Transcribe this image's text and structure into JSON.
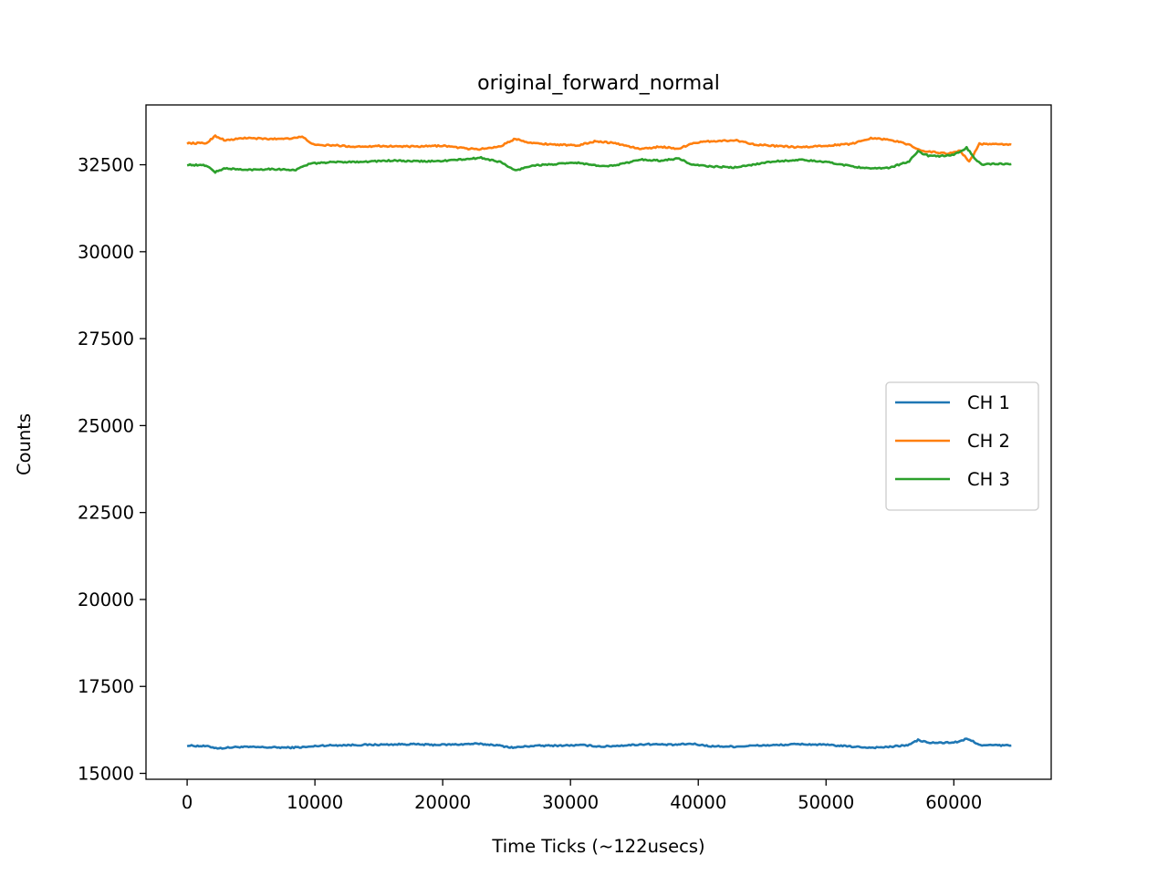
{
  "chart_data": {
    "type": "line",
    "title": "original_forward_normal",
    "xlabel": "Time Ticks (~122usecs)",
    "ylabel": "Counts",
    "xlim": [
      -3220,
      67620
    ],
    "ylim": [
      14830,
      34220
    ],
    "xticks": [
      0,
      10000,
      20000,
      30000,
      40000,
      50000,
      60000
    ],
    "yticks": [
      15000,
      17500,
      20000,
      22500,
      25000,
      27500,
      30000,
      32500
    ],
    "grid": false,
    "legend_position": "center-right",
    "series": [
      {
        "name": "CH 1",
        "color": "#1f77b4",
        "x": [
          0,
          1500,
          2500,
          4000,
          6000,
          8000,
          9500,
          10500,
          12000,
          14000,
          16000,
          17500,
          19000,
          21000,
          22500,
          24000,
          25500,
          27000,
          29000,
          31000,
          32500,
          34000,
          36000,
          38000,
          39500,
          41000,
          43000,
          44500,
          46000,
          48000,
          50000,
          52000,
          53500,
          55000,
          56500,
          57200,
          58000,
          59000,
          60000,
          60500,
          61000,
          61500,
          62200,
          63000,
          64500
        ],
        "y": [
          15800,
          15780,
          15720,
          15760,
          15750,
          15740,
          15760,
          15800,
          15810,
          15820,
          15830,
          15840,
          15820,
          15830,
          15850,
          15820,
          15740,
          15790,
          15800,
          15810,
          15770,
          15800,
          15840,
          15820,
          15850,
          15780,
          15770,
          15800,
          15810,
          15840,
          15820,
          15770,
          15740,
          15760,
          15820,
          15960,
          15880,
          15880,
          15890,
          15920,
          15990,
          15920,
          15800,
          15810,
          15800
        ]
      },
      {
        "name": "CH 2",
        "color": "#ff7f0e",
        "x": [
          0,
          1500,
          2200,
          3000,
          4500,
          6500,
          8000,
          9000,
          10000,
          11500,
          13000,
          15000,
          16500,
          18000,
          20000,
          22000,
          23000,
          24500,
          25700,
          27000,
          29000,
          30500,
          32000,
          33500,
          35500,
          37000,
          38500,
          39500,
          41000,
          43000,
          44500,
          46000,
          48000,
          50000,
          52000,
          53500,
          55000,
          56500,
          57500,
          58500,
          59500,
          60500,
          61200,
          62000,
          62800,
          64500
        ],
        "y": [
          33120,
          33120,
          33330,
          33200,
          33270,
          33240,
          33260,
          33300,
          33060,
          33060,
          33020,
          33040,
          33030,
          33020,
          33050,
          32960,
          32950,
          33030,
          33250,
          33120,
          33080,
          33050,
          33180,
          33120,
          32950,
          33020,
          32960,
          33120,
          33180,
          33200,
          33080,
          33040,
          33000,
          33050,
          33100,
          33270,
          33220,
          33080,
          32900,
          32860,
          32820,
          32900,
          32580,
          33100,
          33090,
          33080
        ]
      },
      {
        "name": "CH 3",
        "color": "#2ca02c",
        "x": [
          0,
          1500,
          2200,
          3000,
          4500,
          6500,
          8500,
          9500,
          10500,
          12000,
          14000,
          16000,
          17500,
          19500,
          21500,
          23000,
          24500,
          25700,
          27000,
          29000,
          30500,
          32500,
          34000,
          35500,
          37000,
          38500,
          39500,
          41000,
          43000,
          44500,
          46000,
          48000,
          50000,
          52000,
          53500,
          55000,
          56500,
          57200,
          58000,
          59000,
          60000,
          61000,
          61600,
          62200,
          63000,
          64500
        ],
        "y": [
          32500,
          32480,
          32290,
          32400,
          32350,
          32380,
          32350,
          32520,
          32560,
          32580,
          32590,
          32620,
          32600,
          32600,
          32650,
          32700,
          32580,
          32330,
          32480,
          32520,
          32560,
          32450,
          32520,
          32650,
          32620,
          32680,
          32500,
          32450,
          32420,
          32520,
          32600,
          32640,
          32580,
          32460,
          32380,
          32420,
          32600,
          32880,
          32760,
          32750,
          32780,
          32990,
          32700,
          32500,
          32520,
          32520
        ]
      }
    ]
  }
}
